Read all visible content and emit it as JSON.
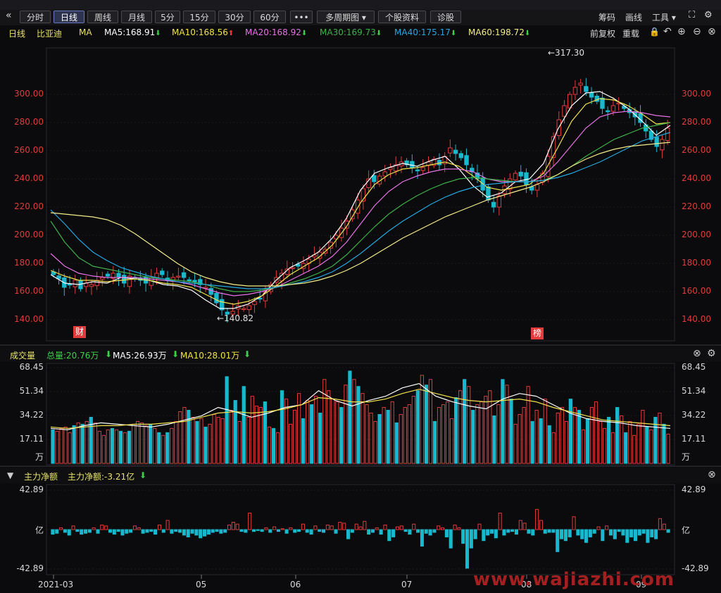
{
  "toolbar": {
    "collapse_icon": "double-left-chevron",
    "periods": [
      "分时",
      "日线",
      "周线",
      "月线",
      "5分",
      "15分",
      "30分",
      "60分"
    ],
    "active_period": "日线",
    "more_label": "•••",
    "multi_period_label": "多周期图",
    "stock_info_label": "个股资料",
    "diagnose_label": "诊股",
    "chip_label": "筹码",
    "draw_label": "画线",
    "tools_label": "工具"
  },
  "price_panel": {
    "period_label": "日线",
    "stock_name": "比亚迪",
    "ma_label": "MA",
    "ma_items": [
      {
        "name": "MA5",
        "value": "168.91",
        "dir": "down",
        "color": "#ffffff"
      },
      {
        "name": "MA10",
        "value": "168.56",
        "dir": "up",
        "color": "#f2e24c"
      },
      {
        "name": "MA20",
        "value": "168.92",
        "dir": "down",
        "color": "#e672e6"
      },
      {
        "name": "MA30",
        "value": "169.73",
        "dir": "down",
        "color": "#3fb04a"
      },
      {
        "name": "MA40",
        "value": "175.17",
        "dir": "down",
        "color": "#25a8e0"
      },
      {
        "name": "MA60",
        "value": "198.72",
        "dir": "down",
        "color": "#f3ec8a"
      }
    ],
    "adjust_label": "前复权",
    "reload_label": "重载",
    "high_annotation": "←317.30",
    "low_annotation": "←140.82",
    "badges": [
      "财",
      "榜"
    ]
  },
  "volume_panel": {
    "title": "成交量",
    "total_label": "总量:20.76万",
    "ma5_label": "MA5:26.93万",
    "ma10_label": "MA10:28.01万",
    "ticks": [
      "68.45",
      "51.34",
      "34.22",
      "17.11"
    ],
    "unit": "万"
  },
  "flow_panel": {
    "title": "主力净额",
    "value_label": "主力净额:-3.21亿",
    "ticks": [
      "42.89",
      "亿",
      "-42.89"
    ]
  },
  "watermark": "www.wajiazhi.com",
  "colors": {
    "up": "#e23b3b",
    "down": "#19b9cd",
    "axis_text": "#e23b3b",
    "bg": "#0b0b0d"
  },
  "chart_data": [
    {
      "type": "candlestick",
      "title": "比亚迪 日线",
      "y_ticks": [
        140,
        160,
        180,
        200,
        220,
        240,
        260,
        280,
        300
      ],
      "ylim": [
        132,
        322
      ],
      "x_ticks": [
        "2021-03",
        "05",
        "06",
        "07",
        "08",
        "09"
      ],
      "high": 317.3,
      "low": 140.82,
      "close_series": [
        172,
        169,
        163,
        165,
        168,
        162,
        166,
        165,
        168,
        170,
        171,
        173,
        170,
        166,
        171,
        169,
        168,
        166,
        170,
        173,
        172,
        168,
        170,
        171,
        170,
        168,
        167,
        165,
        163,
        158,
        152,
        147,
        144,
        146,
        150,
        148,
        150,
        153,
        155,
        160,
        165,
        170,
        173,
        176,
        177,
        178,
        180,
        183,
        186,
        188,
        190,
        195,
        200,
        205,
        210,
        218,
        225,
        233,
        240,
        238,
        242,
        245,
        248,
        250,
        252,
        250,
        248,
        246,
        248,
        252,
        254,
        250,
        256,
        262,
        258,
        255,
        250,
        245,
        240,
        232,
        225,
        220,
        228,
        235,
        240,
        244,
        242,
        236,
        232,
        236,
        244,
        256,
        270,
        282,
        292,
        300,
        305,
        308,
        302,
        298,
        295,
        290,
        288,
        292,
        294,
        290,
        287,
        284,
        280,
        274,
        268,
        263,
        268,
        276
      ],
      "ma_series": [
        {
          "name": "MA5",
          "values": [
            172,
            166,
            165,
            167,
            166,
            170,
            169,
            168,
            165,
            164,
            161,
            154,
            148,
            148,
            151,
            157,
            168,
            177,
            182,
            188,
            198,
            212,
            232,
            244,
            248,
            251,
            249,
            253,
            256,
            247,
            235,
            227,
            230,
            238,
            240,
            251,
            275,
            292,
            301,
            302,
            297,
            290,
            281,
            271,
            278
          ],
          "color": "#ffffff"
        },
        {
          "name": "MA10",
          "values": [
            175,
            171,
            168,
            168,
            167,
            168,
            169,
            168,
            166,
            165,
            163,
            158,
            153,
            151,
            153,
            157,
            164,
            172,
            178,
            184,
            193,
            206,
            223,
            236,
            243,
            247,
            248,
            250,
            252,
            249,
            242,
            234,
            232,
            234,
            236,
            244,
            262,
            281,
            293,
            297,
            296,
            292,
            286,
            279,
            280
          ],
          "color": "#f2e24c"
        },
        {
          "name": "MA20",
          "values": [
            187,
            178,
            173,
            171,
            170,
            170,
            170,
            169,
            168,
            167,
            165,
            162,
            159,
            157,
            158,
            160,
            163,
            168,
            173,
            178,
            185,
            195,
            208,
            221,
            231,
            238,
            242,
            245,
            247,
            247,
            245,
            240,
            238,
            238,
            238,
            242,
            252,
            264,
            276,
            284,
            287,
            288,
            287,
            285,
            284
          ],
          "color": "#e672e6"
        },
        {
          "name": "MA30",
          "values": [
            210,
            195,
            184,
            178,
            176,
            174,
            172,
            170,
            169,
            168,
            167,
            165,
            162,
            160,
            160,
            161,
            163,
            166,
            169,
            173,
            178,
            186,
            196,
            206,
            215,
            222,
            228,
            233,
            237,
            240,
            241,
            240,
            239,
            238,
            238,
            239,
            243,
            249,
            256,
            262,
            268,
            272,
            276,
            278,
            280
          ],
          "color": "#3fb04a"
        },
        {
          "name": "MA40",
          "values": [
            218,
            208,
            197,
            188,
            182,
            177,
            174,
            171,
            169,
            167,
            166,
            165,
            164,
            163,
            162,
            162,
            163,
            165,
            167,
            170,
            174,
            180,
            187,
            195,
            203,
            210,
            216,
            222,
            227,
            231,
            234,
            236,
            237,
            238,
            238,
            239,
            241,
            244,
            248,
            252,
            257,
            262,
            267,
            270,
            273
          ],
          "color": "#25a8e0"
        },
        {
          "name": "MA60",
          "values": [
            216,
            215,
            214,
            213,
            211,
            207,
            201,
            194,
            187,
            180,
            174,
            170,
            167,
            165,
            164,
            164,
            164,
            165,
            166,
            168,
            171,
            175,
            180,
            186,
            192,
            198,
            203,
            208,
            213,
            217,
            221,
            225,
            228,
            231,
            234,
            238,
            243,
            249,
            254,
            258,
            261,
            263,
            264,
            265,
            266
          ],
          "color": "#f3ec8a"
        }
      ]
    },
    {
      "type": "bar",
      "title": "成交量",
      "unit": "万",
      "ylim": [
        0,
        68.45
      ],
      "y_ticks": [
        17.11,
        34.22,
        51.34,
        68.45
      ],
      "values": [
        24,
        23,
        25,
        26,
        22,
        27,
        29,
        28,
        30,
        33,
        29,
        23,
        20,
        24,
        25,
        24,
        23,
        22,
        23,
        28,
        30,
        29,
        27,
        28,
        25,
        22,
        20,
        22,
        25,
        30,
        37,
        40,
        38,
        33,
        30,
        32,
        26,
        28,
        35,
        33,
        32,
        62,
        38,
        45,
        30,
        55,
        33,
        48,
        41,
        40,
        44,
        26,
        25,
        22,
        52,
        46,
        28,
        38,
        50,
        32,
        45,
        42,
        48,
        36,
        60,
        52,
        46,
        44,
        40,
        56,
        66,
        60,
        55,
        50,
        42,
        36,
        30,
        35,
        40,
        38,
        44,
        29,
        35,
        40,
        42,
        48,
        52,
        63,
        56,
        60,
        30,
        40,
        42,
        44,
        32,
        47,
        52,
        60,
        55,
        38,
        42,
        44,
        48,
        52,
        34,
        42,
        60,
        56,
        46,
        28,
        35,
        40,
        55,
        30,
        38,
        32,
        46,
        27,
        22,
        36,
        40,
        30,
        46,
        40,
        38,
        24,
        32,
        40,
        44,
        30,
        25,
        33,
        22,
        40,
        34,
        22,
        30,
        20,
        28,
        38,
        26,
        24,
        33,
        36,
        28,
        21
      ],
      "ma_series": [
        {
          "name": "MA5",
          "values": [
            25,
            24,
            27,
            29,
            28,
            27,
            26,
            28,
            31,
            34,
            40,
            37,
            33,
            36,
            40,
            42,
            52,
            45,
            41,
            45,
            48,
            54,
            57,
            48,
            44,
            41,
            39,
            46,
            50,
            48,
            42,
            36,
            32,
            30,
            29,
            27,
            26,
            25
          ],
          "color": "#ffffff"
        },
        {
          "name": "MA10",
          "values": [
            26,
            25,
            26,
            27,
            27,
            28,
            28,
            29,
            30,
            33,
            36,
            37,
            36,
            37,
            39,
            42,
            47,
            46,
            44,
            44,
            46,
            50,
            53,
            50,
            47,
            45,
            44,
            45,
            46,
            44,
            40,
            37,
            34,
            31,
            30,
            29,
            28,
            27
          ],
          "color": "#f2e24c"
        }
      ]
    },
    {
      "type": "bar",
      "title": "主力净额",
      "unit": "亿",
      "ylim": [
        -42.89,
        42.89
      ],
      "y_ticks": [
        -42.89,
        0,
        42.89
      ],
      "values": [
        -5,
        -4,
        2,
        -3,
        -6,
        4,
        -2,
        -5,
        -4,
        -3,
        2,
        -4,
        5,
        4,
        -3,
        -5,
        -2,
        -6,
        -4,
        -3,
        4,
        2,
        -4,
        -3,
        -2,
        -5,
        5,
        -3,
        10,
        -4,
        -2,
        -3,
        -6,
        -8,
        -4,
        -6,
        -9,
        -7,
        -5,
        -3,
        -2,
        -4,
        -3,
        5,
        8,
        6,
        -2,
        -3,
        18,
        -2,
        -1,
        -2,
        2,
        -3,
        3,
        -2,
        1,
        -4,
        2,
        -3,
        -2,
        6,
        -3,
        -5,
        4,
        -2,
        -3,
        5,
        4,
        -4,
        8,
        7,
        -10,
        -3,
        6,
        3,
        9,
        -5,
        -3,
        2,
        -5,
        5,
        -12,
        -8,
        3,
        4,
        -2,
        -5,
        6,
        -3,
        -18,
        -4,
        -6,
        -3,
        4,
        2,
        -8,
        -20,
        5,
        2,
        -15,
        -42,
        -20,
        -10,
        6,
        -12,
        -6,
        -4,
        -9,
        18,
        -6,
        -3,
        -2,
        -5,
        10,
        7,
        -4,
        -6,
        22,
        10,
        -4,
        -3,
        -3,
        -24,
        -10,
        -12,
        -8,
        14,
        -6,
        -10,
        -14,
        -8,
        -4,
        3,
        -12,
        4,
        -6,
        -10,
        -2,
        -6,
        -14,
        -8,
        -12,
        -6,
        -4,
        -14,
        -8,
        -10,
        12,
        6,
        -3
      ],
      "note": "bar heights estimated from image"
    }
  ]
}
